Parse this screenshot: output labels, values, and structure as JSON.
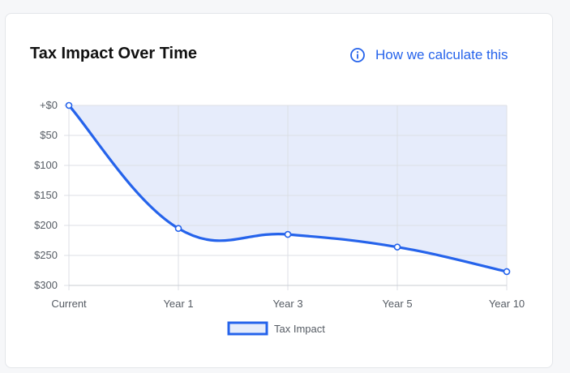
{
  "card": {
    "title": "Tax Impact Over Time",
    "link_label": "How we calculate this",
    "link_icon": "info-circle-icon"
  },
  "colors": {
    "line": "#2563eb",
    "fill": "#e6ecfb",
    "grid": "#dcdfe4",
    "link": "#2563eb"
  },
  "chart_data": {
    "type": "area",
    "title": "",
    "xlabel": "",
    "ylabel": "",
    "categories": [
      "Current",
      "Year 1",
      "Year 3",
      "Year 5",
      "Year 10"
    ],
    "series": [
      {
        "name": "Tax Impact",
        "values": [
          0,
          205,
          215,
          236,
          277
        ]
      }
    ],
    "y_ticks": [
      0,
      50,
      100,
      150,
      200,
      250,
      300
    ],
    "y_tick_labels": [
      "+$0",
      "$50",
      "$100",
      "$150",
      "$200",
      "$250",
      "$300"
    ],
    "ylim": [
      0,
      300
    ],
    "y_axis_inverted": true,
    "grid": true,
    "legend": "bottom",
    "smooth": true
  }
}
